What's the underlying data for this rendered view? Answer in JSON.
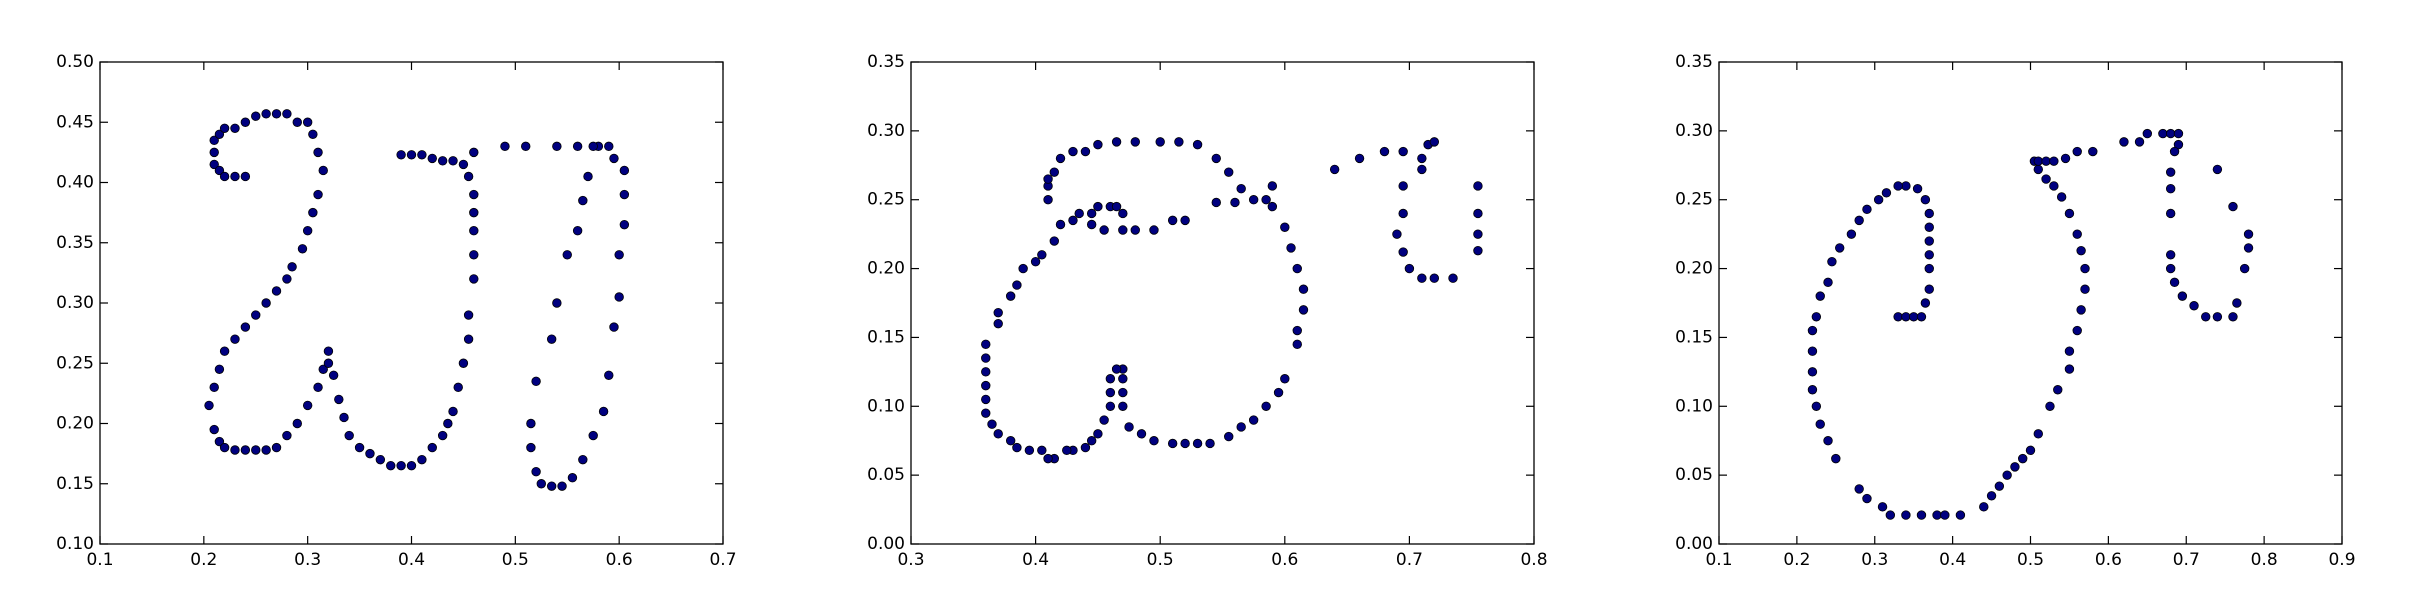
{
  "chart_data": [
    {
      "type": "scatter",
      "color": "#00007f",
      "xlim": [
        0.1,
        0.7
      ],
      "xticks": [
        0.1,
        0.2,
        0.3,
        0.4,
        0.5,
        0.6,
        0.7
      ],
      "ylim": [
        0.1,
        0.5
      ],
      "yticks": [
        {
          "value": 0.1,
          "label": "0.10"
        },
        0.15,
        {
          "value": 0.2,
          "label": "0.20"
        },
        0.25,
        {
          "value": 0.3,
          "label": "0.30"
        },
        0.35,
        {
          "value": 0.4,
          "label": "0.40"
        },
        0.45,
        {
          "value": 0.5,
          "label": "0.50"
        }
      ],
      "x": [
        0.21,
        0.21,
        0.21,
        0.215,
        0.22,
        0.23,
        0.24,
        0.215,
        0.22,
        0.23,
        0.24,
        0.25,
        0.26,
        0.27,
        0.28,
        0.29,
        0.3,
        0.305,
        0.31,
        0.315,
        0.31,
        0.305,
        0.3,
        0.295,
        0.285,
        0.28,
        0.27,
        0.26,
        0.25,
        0.24,
        0.23,
        0.22,
        0.215,
        0.21,
        0.205,
        0.21,
        0.215,
        0.22,
        0.23,
        0.24,
        0.25,
        0.26,
        0.27,
        0.28,
        0.29,
        0.3,
        0.31,
        0.315,
        0.32,
        0.32,
        0.325,
        0.33,
        0.335,
        0.34,
        0.35,
        0.36,
        0.37,
        0.38,
        0.39,
        0.4,
        0.41,
        0.42,
        0.43,
        0.435,
        0.44,
        0.445,
        0.45,
        0.455,
        0.455,
        0.46,
        0.46,
        0.46,
        0.46,
        0.46,
        0.455,
        0.45,
        0.44,
        0.43,
        0.42,
        0.41,
        0.4,
        0.39,
        0.46,
        0.49,
        0.51,
        0.54,
        0.56,
        0.58,
        0.59,
        0.595,
        0.605,
        0.605,
        0.605,
        0.6,
        0.6,
        0.595,
        0.59,
        0.585,
        0.575,
        0.565,
        0.555,
        0.545,
        0.535,
        0.525,
        0.52,
        0.515,
        0.515,
        0.52,
        0.535,
        0.54,
        0.55,
        0.56,
        0.565,
        0.57,
        0.575
      ],
      "values": [
        0.435,
        0.425,
        0.415,
        0.41,
        0.405,
        0.405,
        0.405,
        0.44,
        0.445,
        0.445,
        0.45,
        0.455,
        0.457,
        0.457,
        0.457,
        0.45,
        0.45,
        0.44,
        0.425,
        0.41,
        0.39,
        0.375,
        0.36,
        0.345,
        0.33,
        0.32,
        0.31,
        0.3,
        0.29,
        0.28,
        0.27,
        0.26,
        0.245,
        0.23,
        0.215,
        0.195,
        0.185,
        0.18,
        0.178,
        0.178,
        0.178,
        0.178,
        0.18,
        0.19,
        0.2,
        0.215,
        0.23,
        0.245,
        0.25,
        0.26,
        0.24,
        0.22,
        0.205,
        0.19,
        0.18,
        0.175,
        0.17,
        0.165,
        0.165,
        0.165,
        0.17,
        0.18,
        0.19,
        0.2,
        0.21,
        0.23,
        0.25,
        0.27,
        0.29,
        0.32,
        0.34,
        0.36,
        0.375,
        0.39,
        0.405,
        0.415,
        0.418,
        0.418,
        0.42,
        0.423,
        0.423,
        0.423,
        0.425,
        0.43,
        0.43,
        0.43,
        0.43,
        0.43,
        0.43,
        0.42,
        0.41,
        0.39,
        0.365,
        0.34,
        0.305,
        0.28,
        0.24,
        0.21,
        0.19,
        0.17,
        0.155,
        0.148,
        0.148,
        0.15,
        0.16,
        0.18,
        0.2,
        0.235,
        0.27,
        0.3,
        0.34,
        0.36,
        0.385,
        0.405,
        0.43
      ]
    },
    {
      "type": "scatter",
      "color": "#00007f",
      "xlim": [
        0.3,
        0.8
      ],
      "xticks": [
        0.3,
        0.4,
        0.5,
        0.6,
        0.7,
        0.8
      ],
      "ylim": [
        0,
        0.35
      ],
      "yticks": [
        {
          "value": 0,
          "label": "0.00"
        },
        0.05,
        {
          "value": 0.1,
          "label": "0.10"
        },
        0.15,
        {
          "value": 0.2,
          "label": "0.20"
        },
        0.25,
        {
          "value": 0.3,
          "label": "0.30"
        },
        0.35
      ],
      "x": [
        0.41,
        0.41,
        0.41,
        0.415,
        0.42,
        0.43,
        0.44,
        0.45,
        0.465,
        0.48,
        0.5,
        0.515,
        0.53,
        0.545,
        0.555,
        0.565,
        0.575,
        0.585,
        0.59,
        0.59,
        0.6,
        0.605,
        0.61,
        0.615,
        0.615,
        0.61,
        0.61,
        0.6,
        0.595,
        0.585,
        0.575,
        0.565,
        0.555,
        0.54,
        0.53,
        0.52,
        0.51,
        0.495,
        0.485,
        0.475,
        0.47,
        0.47,
        0.47,
        0.47,
        0.465,
        0.46,
        0.46,
        0.46,
        0.455,
        0.45,
        0.445,
        0.44,
        0.43,
        0.425,
        0.415,
        0.41,
        0.405,
        0.395,
        0.385,
        0.38,
        0.37,
        0.365,
        0.36,
        0.36,
        0.36,
        0.36,
        0.36,
        0.36,
        0.37,
        0.37,
        0.38,
        0.385,
        0.39,
        0.4,
        0.405,
        0.415,
        0.42,
        0.43,
        0.435,
        0.445,
        0.45,
        0.46,
        0.465,
        0.445,
        0.455,
        0.47,
        0.47,
        0.48,
        0.495,
        0.51,
        0.52,
        0.545,
        0.56,
        0.64,
        0.66,
        0.68,
        0.695,
        0.71,
        0.715,
        0.72,
        0.71,
        0.695,
        0.695,
        0.69,
        0.695,
        0.7,
        0.71,
        0.72,
        0.735,
        0.755,
        0.755,
        0.755,
        0.755
      ],
      "values": [
        0.25,
        0.26,
        0.265,
        0.27,
        0.28,
        0.285,
        0.285,
        0.29,
        0.292,
        0.292,
        0.292,
        0.292,
        0.29,
        0.28,
        0.27,
        0.258,
        0.25,
        0.25,
        0.26,
        0.245,
        0.23,
        0.215,
        0.2,
        0.185,
        0.17,
        0.155,
        0.145,
        0.12,
        0.11,
        0.1,
        0.09,
        0.085,
        0.078,
        0.073,
        0.073,
        0.073,
        0.073,
        0.075,
        0.08,
        0.085,
        0.1,
        0.11,
        0.12,
        0.127,
        0.127,
        0.12,
        0.11,
        0.1,
        0.09,
        0.08,
        0.075,
        0.07,
        0.068,
        0.068,
        0.062,
        0.062,
        0.068,
        0.068,
        0.07,
        0.075,
        0.08,
        0.087,
        0.095,
        0.105,
        0.115,
        0.125,
        0.135,
        0.145,
        0.16,
        0.168,
        0.18,
        0.188,
        0.2,
        0.205,
        0.21,
        0.22,
        0.232,
        0.235,
        0.24,
        0.24,
        0.245,
        0.245,
        0.245,
        0.232,
        0.228,
        0.228,
        0.24,
        0.228,
        0.228,
        0.235,
        0.235,
        0.248,
        0.248,
        0.272,
        0.28,
        0.285,
        0.285,
        0.28,
        0.29,
        0.292,
        0.272,
        0.26,
        0.24,
        0.225,
        0.212,
        0.2,
        0.193,
        0.193,
        0.193,
        0.213,
        0.225,
        0.24,
        0.26
      ]
    },
    {
      "type": "scatter",
      "color": "#00007f",
      "xlim": [
        0.1,
        0.9
      ],
      "xticks": [
        0.1,
        0.2,
        0.3,
        0.4,
        0.5,
        0.6,
        0.7,
        0.8,
        0.9
      ],
      "ylim": [
        0,
        0.35
      ],
      "yticks": [
        {
          "value": 0,
          "label": "0.00"
        },
        0.05,
        {
          "value": 0.1,
          "label": "0.10"
        },
        0.15,
        {
          "value": 0.2,
          "label": "0.20"
        },
        0.25,
        {
          "value": 0.3,
          "label": "0.30"
        },
        0.35
      ],
      "x": [
        0.33,
        0.34,
        0.35,
        0.36,
        0.365,
        0.37,
        0.37,
        0.37,
        0.37,
        0.37,
        0.37,
        0.365,
        0.355,
        0.34,
        0.33,
        0.315,
        0.305,
        0.29,
        0.28,
        0.27,
        0.255,
        0.245,
        0.24,
        0.23,
        0.225,
        0.22,
        0.22,
        0.22,
        0.22,
        0.225,
        0.23,
        0.24,
        0.25,
        0.28,
        0.29,
        0.31,
        0.32,
        0.34,
        0.36,
        0.38,
        0.39,
        0.41,
        0.44,
        0.45,
        0.46,
        0.47,
        0.48,
        0.49,
        0.5,
        0.51,
        0.525,
        0.535,
        0.55,
        0.55,
        0.56,
        0.565,
        0.57,
        0.57,
        0.565,
        0.56,
        0.55,
        0.54,
        0.53,
        0.52,
        0.51,
        0.505,
        0.51,
        0.52,
        0.53,
        0.545,
        0.56,
        0.58,
        0.62,
        0.64,
        0.65,
        0.67,
        0.68,
        0.69,
        0.69,
        0.685,
        0.68,
        0.68,
        0.68,
        0.68,
        0.68,
        0.685,
        0.695,
        0.71,
        0.725,
        0.74,
        0.76,
        0.765,
        0.775,
        0.78,
        0.78,
        0.76,
        0.74
      ],
      "values": [
        0.165,
        0.165,
        0.165,
        0.165,
        0.175,
        0.185,
        0.2,
        0.21,
        0.22,
        0.23,
        0.24,
        0.25,
        0.258,
        0.26,
        0.26,
        0.255,
        0.25,
        0.243,
        0.235,
        0.225,
        0.215,
        0.205,
        0.19,
        0.18,
        0.165,
        0.155,
        0.14,
        0.125,
        0.112,
        0.1,
        0.087,
        0.075,
        0.062,
        0.04,
        0.033,
        0.027,
        0.021,
        0.021,
        0.021,
        0.021,
        0.021,
        0.021,
        0.027,
        0.035,
        0.042,
        0.05,
        0.056,
        0.062,
        0.068,
        0.08,
        0.1,
        0.112,
        0.127,
        0.14,
        0.155,
        0.17,
        0.185,
        0.2,
        0.213,
        0.225,
        0.24,
        0.252,
        0.26,
        0.265,
        0.272,
        0.278,
        0.278,
        0.278,
        0.278,
        0.28,
        0.285,
        0.285,
        0.292,
        0.292,
        0.298,
        0.298,
        0.298,
        0.298,
        0.29,
        0.285,
        0.27,
        0.258,
        0.24,
        0.21,
        0.2,
        0.19,
        0.18,
        0.173,
        0.165,
        0.165,
        0.165,
        0.175,
        0.2,
        0.215,
        0.225,
        0.245,
        0.272
      ]
    }
  ]
}
